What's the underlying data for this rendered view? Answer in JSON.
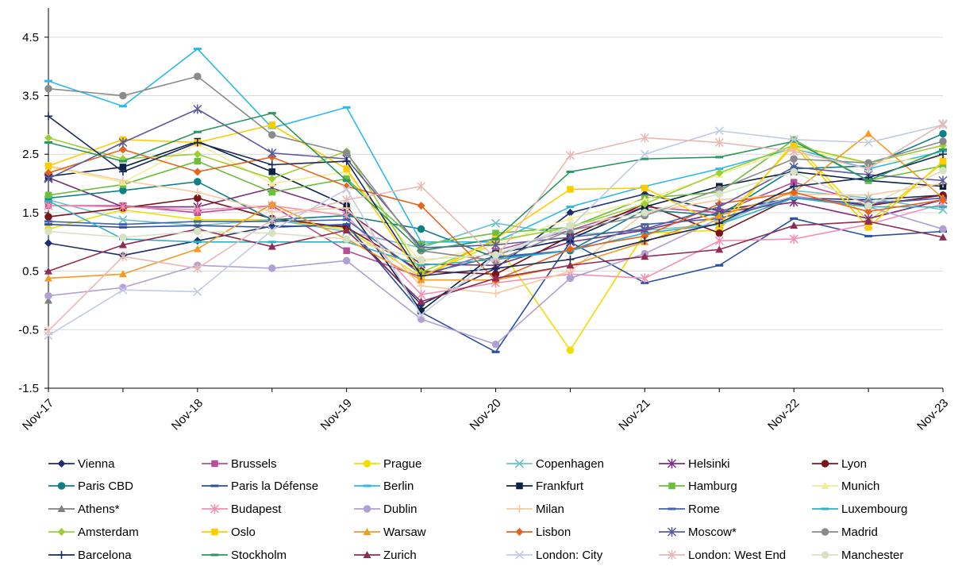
{
  "chart_data": {
    "type": "line",
    "title": "",
    "xlabel": "",
    "ylabel": "",
    "ylim": [
      -1.5,
      5.0
    ],
    "yticks": [
      -1.5,
      -0.5,
      0.5,
      1.5,
      2.5,
      3.5,
      4.5
    ],
    "ytick_labels": [
      "-1.5",
      "-0.5",
      "0.5",
      "1.5",
      "2.5",
      "3.5",
      "4.5"
    ],
    "x": [
      "Nov-17",
      "May-18",
      "Nov-18",
      "May-19",
      "Nov-19",
      "May-20",
      "Nov-20",
      "May-21",
      "Nov-21",
      "May-22",
      "Nov-22",
      "May-23",
      "Nov-23"
    ],
    "xtick_labels": [
      "Nov-17",
      "Nov-18",
      "Nov-19",
      "Nov-20",
      "Nov-21",
      "Nov-22",
      "Nov-23"
    ],
    "grid": "horizontal",
    "legend_position": "bottom",
    "series": [
      {
        "name": "Vienna",
        "color": "#1f2d6b",
        "marker": "diamond",
        "values": [
          0.98,
          0.77,
          1.02,
          1.27,
          1.27,
          -0.07,
          0.55,
          1.5,
          1.82,
          1.53,
          1.75,
          1.72,
          1.8
        ]
      },
      {
        "name": "Brussels",
        "color": "#b5509a",
        "marker": "square",
        "values": [
          1.62,
          1.62,
          1.5,
          1.62,
          0.85,
          0.4,
          0.85,
          1.2,
          1.6,
          1.5,
          2.02,
          1.67,
          1.75
        ]
      },
      {
        "name": "Prague",
        "color": "#f2dd00",
        "marker": "circle",
        "values": [
          1.22,
          1.55,
          1.38,
          1.38,
          1.22,
          0.4,
          0.98,
          -0.85,
          1.15,
          1.2,
          2.7,
          1.35,
          2.35
        ]
      },
      {
        "name": "Copenhagen",
        "color": "#6ec1c9",
        "marker": "x",
        "values": [
          1.72,
          1.38,
          1.28,
          1.38,
          1.18,
          0.9,
          1.32,
          1.12,
          1.2,
          1.3,
          1.88,
          1.75,
          1.55
        ]
      },
      {
        "name": "Helsinki",
        "color": "#7b2d7e",
        "marker": "star",
        "values": [
          2.1,
          1.6,
          1.6,
          1.92,
          1.52,
          0.62,
          0.6,
          1.0,
          1.2,
          1.5,
          1.68,
          1.4,
          1.72
        ]
      },
      {
        "name": "Lyon",
        "color": "#7a1416",
        "marker": "circle",
        "values": [
          1.43,
          1.58,
          1.75,
          1.4,
          1.25,
          0.5,
          0.45,
          1.1,
          1.65,
          1.15,
          1.78,
          1.62,
          1.8
        ]
      },
      {
        "name": "Paris CBD",
        "color": "#0d7f86",
        "marker": "circle",
        "values": [
          1.75,
          1.88,
          2.03,
          1.38,
          1.45,
          1.22,
          0.73,
          0.85,
          1.55,
          1.45,
          2.25,
          2.3,
          2.85
        ]
      },
      {
        "name": "Paris la Défense",
        "color": "#2b4fa3",
        "marker": "dash",
        "values": [
          1.3,
          1.25,
          1.28,
          1.25,
          1.3,
          -0.2,
          -0.88,
          1.0,
          0.3,
          0.6,
          1.4,
          1.1,
          1.18
        ]
      },
      {
        "name": "Berlin",
        "color": "#2bb9ec",
        "marker": "dash",
        "values": [
          3.75,
          3.32,
          4.3,
          2.95,
          3.3,
          1.0,
          1.0,
          1.6,
          1.95,
          2.25,
          2.6,
          2.25,
          2.55
        ]
      },
      {
        "name": "Frankfurt",
        "color": "#0c2444",
        "marker": "square",
        "values": [
          2.12,
          2.28,
          2.72,
          2.2,
          1.62,
          -0.18,
          0.8,
          1.05,
          1.6,
          1.95,
          2.2,
          2.05,
          1.95
        ]
      },
      {
        "name": "Hamburg",
        "color": "#6cbf3e",
        "marker": "square",
        "values": [
          1.8,
          1.98,
          2.38,
          1.85,
          2.08,
          0.95,
          1.15,
          1.25,
          1.75,
          1.85,
          2.75,
          2.05,
          2.3
        ]
      },
      {
        "name": "Munich",
        "color": "#f2ee96",
        "marker": "triangle",
        "values": [
          2.28,
          2.02,
          2.68,
          2.0,
          2.2,
          0.65,
          0.95,
          1.4,
          1.72,
          2.15,
          2.6,
          2.35,
          2.45
        ]
      },
      {
        "name": "Athens*",
        "color": "#808080",
        "marker": "triangle",
        "values": [
          0.0,
          null,
          null,
          null,
          null,
          null,
          null,
          null,
          null,
          null,
          null,
          null,
          null
        ]
      },
      {
        "name": "Budapest",
        "color": "#f58fb3",
        "marker": "star",
        "values": [
          1.62,
          1.6,
          1.55,
          1.62,
          1.45,
          0.1,
          0.3,
          0.45,
          0.38,
          1.02,
          1.05,
          1.3,
          1.65
        ]
      },
      {
        "name": "Dublin",
        "color": "#b0a0d4",
        "marker": "circle",
        "values": [
          0.08,
          0.22,
          0.6,
          0.55,
          0.68,
          -0.32,
          -0.75,
          0.38,
          0.8,
          1.4,
          1.78,
          1.6,
          1.22
        ]
      },
      {
        "name": "Milan",
        "color": "#f7c99e",
        "marker": "plus",
        "values": [
          2.3,
          2.05,
          1.85,
          1.52,
          1.58,
          0.25,
          0.12,
          0.5,
          1.5,
          1.72,
          1.82,
          1.8,
          2.0
        ]
      },
      {
        "name": "Rome",
        "color": "#3f62b4",
        "marker": "dash",
        "values": [
          1.35,
          1.3,
          1.35,
          1.35,
          1.38,
          0.45,
          0.75,
          0.85,
          1.3,
          1.4,
          1.75,
          1.65,
          1.75
        ]
      },
      {
        "name": "Luxembourg",
        "color": "#31b1c4",
        "marker": "dash",
        "values": [
          1.7,
          1.05,
          1.0,
          1.0,
          1.0,
          0.6,
          0.7,
          0.85,
          1.15,
          1.3,
          1.75,
          1.6,
          1.6
        ]
      },
      {
        "name": "Amsterdam",
        "color": "#9ccf34",
        "marker": "diamond",
        "values": [
          2.78,
          2.42,
          2.5,
          2.08,
          2.55,
          0.48,
          1.02,
          1.25,
          1.65,
          2.18,
          2.65,
          2.35,
          2.65
        ]
      },
      {
        "name": "Oslo",
        "color": "#ffcc00",
        "marker": "square",
        "values": [
          2.3,
          2.75,
          2.7,
          3.0,
          2.25,
          0.4,
          1.05,
          1.9,
          1.92,
          1.3,
          2.65,
          1.25,
          2.38
        ]
      },
      {
        "name": "Warsaw",
        "color": "#f39a20",
        "marker": "triangle",
        "values": [
          0.38,
          0.45,
          0.88,
          1.65,
          1.05,
          0.35,
          0.35,
          0.6,
          1.0,
          1.45,
          1.85,
          2.85,
          1.75
        ]
      },
      {
        "name": "Lisbon",
        "color": "#e8641c",
        "marker": "diamond",
        "values": [
          2.18,
          2.58,
          2.2,
          2.45,
          1.95,
          1.62,
          0.35,
          0.88,
          1.1,
          1.65,
          1.85,
          1.52,
          1.72
        ]
      },
      {
        "name": "Moscow*",
        "color": "#5a5aa0",
        "marker": "star",
        "values": [
          2.08,
          2.7,
          3.27,
          2.52,
          2.42,
          0.9,
          0.95,
          1.08,
          1.22,
          1.6,
          2.28,
          2.15,
          2.05
        ]
      },
      {
        "name": "Madrid",
        "color": "#8a8a8a",
        "marker": "circle",
        "values": [
          3.62,
          3.5,
          3.83,
          2.83,
          2.52,
          0.85,
          0.68,
          1.2,
          1.45,
          1.9,
          2.42,
          2.35,
          2.72
        ]
      },
      {
        "name": "Barcelona",
        "color": "#1b2a5a",
        "marker": "plus",
        "values": [
          3.15,
          2.2,
          2.7,
          2.32,
          2.38,
          0.42,
          0.55,
          0.7,
          1.02,
          1.32,
          1.95,
          2.1,
          2.5
        ]
      },
      {
        "name": "Stockholm",
        "color": "#2d9562",
        "marker": "dash",
        "values": [
          2.7,
          2.38,
          2.88,
          3.2,
          2.05,
          0.85,
          1.05,
          2.2,
          2.42,
          2.45,
          2.72,
          2.05,
          2.58
        ]
      },
      {
        "name": "Zurich",
        "color": "#8f2b55",
        "marker": "triangle",
        "values": [
          0.5,
          0.95,
          1.22,
          0.92,
          1.2,
          -0.02,
          0.38,
          0.6,
          0.75,
          0.87,
          1.28,
          1.35,
          1.08
        ]
      },
      {
        "name": "London: City",
        "color": "#c3cbe4",
        "marker": "x",
        "values": [
          -0.6,
          0.18,
          0.15,
          1.2,
          1.9,
          -0.25,
          0.75,
          1.25,
          2.5,
          2.9,
          2.75,
          2.7,
          3.0
        ]
      },
      {
        "name": "London: West End",
        "color": "#e8b8b4",
        "marker": "star",
        "values": [
          -0.52,
          0.75,
          0.55,
          1.38,
          1.72,
          1.95,
          0.72,
          2.48,
          2.78,
          2.7,
          2.55,
          2.25,
          3.02
        ]
      },
      {
        "name": "Manchester",
        "color": "#d6e2c2",
        "marker": "circle",
        "values": [
          1.18,
          1.08,
          1.18,
          1.15,
          1.05,
          0.7,
          0.78,
          1.28,
          1.5,
          1.82,
          2.2,
          1.62,
          2.22
        ]
      }
    ]
  }
}
